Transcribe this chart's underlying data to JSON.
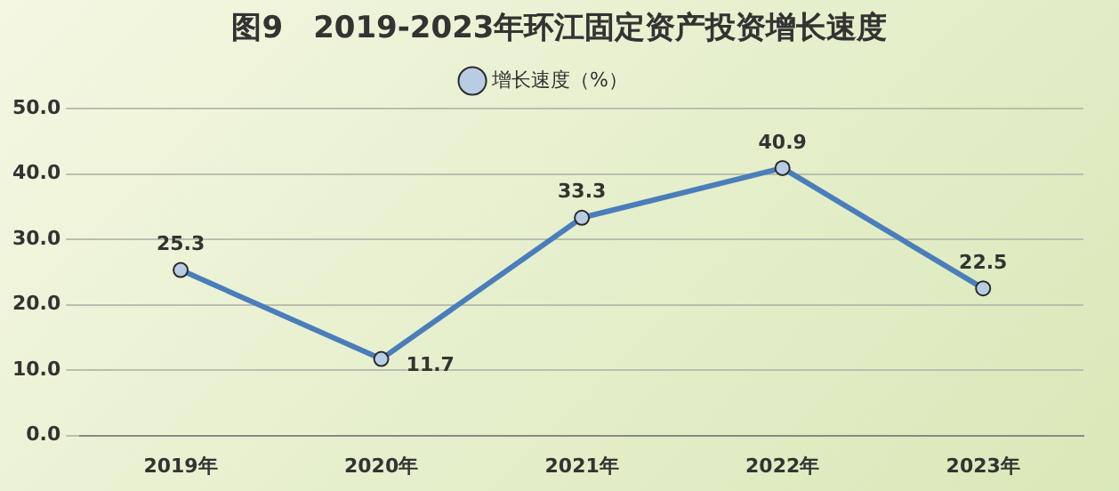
{
  "chart_data": {
    "type": "line",
    "title": "图9　2019-2023年环江固定资产投资增长速度",
    "categories": [
      "2019年",
      "2020年",
      "2021年",
      "2022年",
      "2023年"
    ],
    "series": [
      {
        "name": "增长速度（%）",
        "color": "#4a7ebb",
        "values": [
          25.3,
          11.7,
          33.3,
          40.9,
          22.5
        ]
      }
    ],
    "ylim": [
      0,
      50
    ],
    "yticks": [
      {
        "value": 0,
        "label": "0.0"
      },
      {
        "value": 10,
        "label": "10.0"
      },
      {
        "value": 20,
        "label": "20.0"
      },
      {
        "value": 30,
        "label": "30.0"
      },
      {
        "value": 40,
        "label": "40.0"
      },
      {
        "value": 50,
        "label": "50.0"
      }
    ],
    "grid": "y",
    "legend": "top",
    "marker": "circle",
    "line_style": "solid",
    "data_labels": true
  }
}
